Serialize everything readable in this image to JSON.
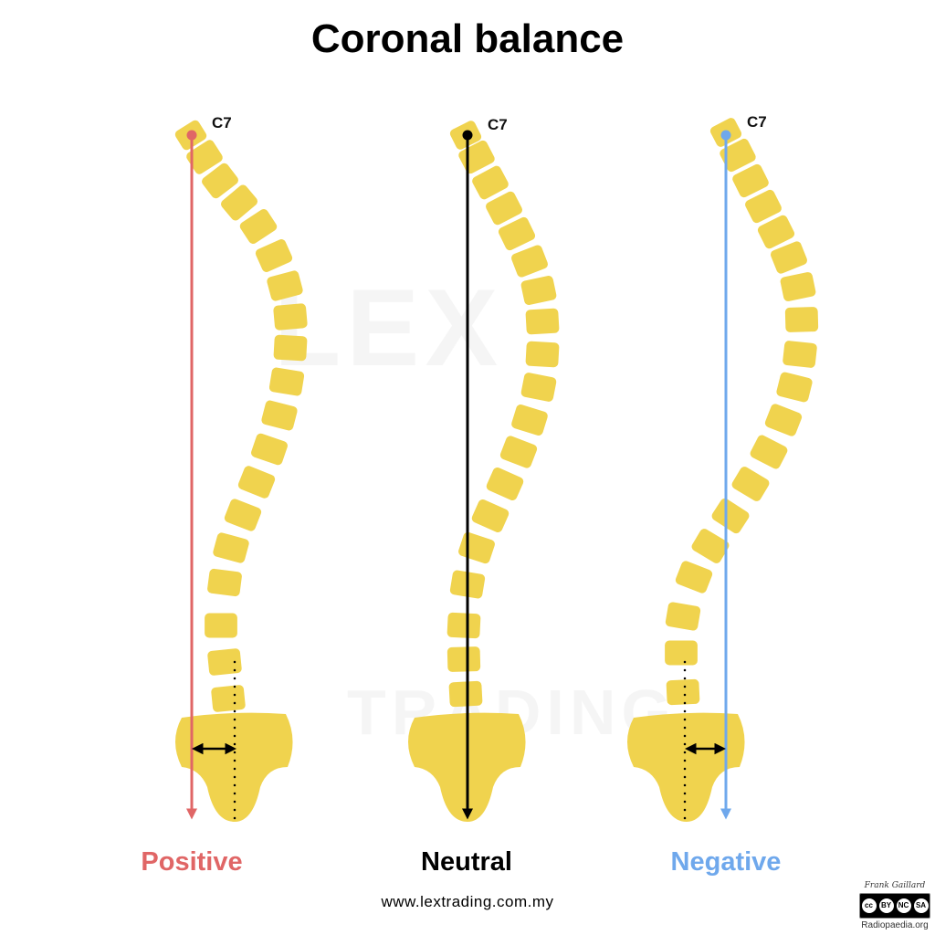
{
  "title": "Coronal balance",
  "colors": {
    "vertebra": "#f0d34e",
    "positive": "#e06666",
    "neutral": "#000000",
    "negative": "#6fa8ec"
  },
  "panels": [
    {
      "label": "Positive",
      "vertebra_label": "C7",
      "color": "#e06666"
    },
    {
      "label": "Neutral",
      "vertebra_label": "C7",
      "color": "#000000"
    },
    {
      "label": "Negative",
      "vertebra_label": "C7",
      "color": "#6fa8ec"
    }
  ],
  "watermark": {
    "top": "LEX",
    "bottom": "TRADING"
  },
  "footer_url": "www.lextrading.com.my",
  "credit": {
    "author": "Frank Gaillard",
    "license": [
      "cc",
      "BY",
      "NC",
      "SA"
    ],
    "site": "Radiopaedia.org"
  }
}
